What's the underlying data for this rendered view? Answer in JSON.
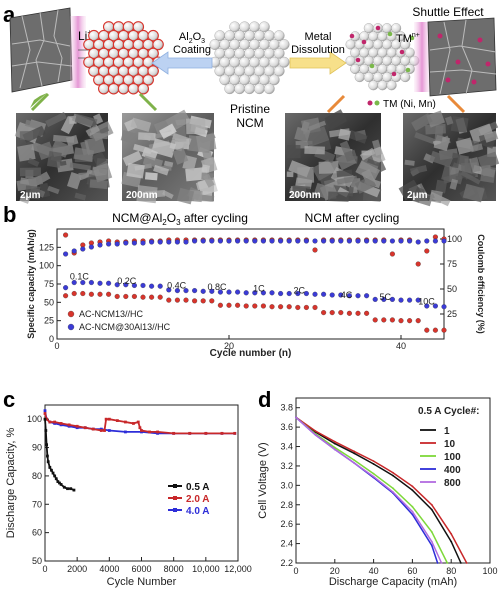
{
  "panels": {
    "a": {
      "letter": "a",
      "li_label": "Li",
      "li_sup": "+",
      "coating_label_1": "Al",
      "coating_label_sub": "2",
      "coating_label_2": "O",
      "coating_label_sub2": "3",
      "coating_label_3": "Coating",
      "dissolution_label_1": "Metal",
      "dissolution_label_2": "Dissolution",
      "shuttle_label": "Shuttle Effect",
      "tm_label": "TM",
      "tm_sup": "n+",
      "tm_legend": "TM (Ni, Mn)",
      "pristine_label_1": "Pristine",
      "pristine_label_2": "NCM",
      "sem_scales": [
        "2μm",
        "200nm",
        "200nm",
        "2μm"
      ]
    },
    "b": {
      "letter": "b",
      "title_left_1": "NCM@Al",
      "title_left_sub": "2",
      "title_left_2": "O",
      "title_left_sub2": "3",
      "title_left_3": " after cycling",
      "title_right": "NCM after cycling"
    },
    "c": {
      "letter": "c"
    },
    "d": {
      "letter": "d"
    }
  },
  "chart_data": [
    {
      "id": "b",
      "type": "scatter",
      "xlabel": "Cycle number (n)",
      "ylabel": "Specific capacity (mAh/g)",
      "y2label": "Coulomb efficiency (%)",
      "xlim": [
        0,
        45
      ],
      "ylim": [
        0,
        150
      ],
      "y2lim": [
        0,
        110
      ],
      "xticks": [
        0,
        20,
        40
      ],
      "yticks": [
        0,
        25,
        50,
        75,
        100,
        125
      ],
      "y2ticks": [
        25,
        50,
        75,
        100
      ],
      "rate_labels": [
        {
          "text": "0.1C",
          "x": 1.5,
          "y": 81
        },
        {
          "text": "0.2C",
          "x": 7,
          "y": 75
        },
        {
          "text": "0.4C",
          "x": 12.8,
          "y": 69
        },
        {
          "text": "0.8C",
          "x": 17.5,
          "y": 67
        },
        {
          "text": "1C",
          "x": 22.8,
          "y": 65
        },
        {
          "text": "2C",
          "x": 27.5,
          "y": 62
        },
        {
          "text": "4C",
          "x": 33,
          "y": 56
        },
        {
          "text": "5C",
          "x": 37.5,
          "y": 53
        },
        {
          "text": "10C",
          "x": 42,
          "y": 47
        }
      ],
      "legend": [
        "AC-NCM13//HC",
        "AC-NCM@30Al13//HC"
      ],
      "legend_position": "bottom-left",
      "series": [
        {
          "name": "AC-NCM13//HC",
          "axis": "left",
          "color": "#d8342c",
          "x": [
            1,
            2,
            3,
            4,
            5,
            6,
            7,
            8,
            9,
            10,
            11,
            12,
            13,
            14,
            15,
            16,
            17,
            18,
            19,
            20,
            21,
            22,
            23,
            24,
            25,
            26,
            27,
            28,
            29,
            30,
            31,
            32,
            33,
            34,
            35,
            36,
            37,
            38,
            39,
            40,
            41,
            42,
            43,
            44,
            45
          ],
          "y": [
            59,
            62,
            62,
            61,
            61,
            61,
            58,
            58,
            58,
            57,
            57,
            57,
            53,
            53,
            53,
            52,
            52,
            52,
            46,
            46,
            46,
            45,
            45,
            45,
            44,
            44,
            44,
            43,
            43,
            43,
            36,
            36,
            36,
            35,
            35,
            35,
            26,
            26,
            26,
            25,
            25,
            25,
            12,
            12,
            12
          ]
        },
        {
          "name": "AC-NCM@30Al13//HC",
          "axis": "left",
          "color": "#3b3bd6",
          "x": [
            1,
            2,
            3,
            4,
            5,
            6,
            7,
            8,
            9,
            10,
            11,
            12,
            13,
            14,
            15,
            16,
            17,
            18,
            19,
            20,
            21,
            22,
            23,
            24,
            25,
            26,
            27,
            28,
            29,
            30,
            31,
            32,
            33,
            34,
            35,
            36,
            37,
            38,
            39,
            40,
            41,
            42,
            43,
            44,
            45
          ],
          "y": [
            70,
            77,
            77,
            77,
            76,
            76,
            74,
            74,
            73,
            73,
            72,
            72,
            67,
            66,
            66,
            66,
            65,
            65,
            64,
            64,
            64,
            63,
            63,
            63,
            63,
            62,
            62,
            62,
            62,
            61,
            61,
            60,
            60,
            59,
            59,
            59,
            54,
            54,
            54,
            53,
            53,
            53,
            45,
            45,
            44
          ]
        },
        {
          "name": "CE red",
          "axis": "right",
          "color": "#d8342c",
          "x": [
            1,
            2,
            3,
            4,
            5,
            6,
            7,
            8,
            9,
            10,
            11,
            12,
            13,
            14,
            15,
            16,
            17,
            18,
            19,
            20,
            21,
            22,
            23,
            24,
            25,
            26,
            27,
            28,
            29,
            30,
            31,
            32,
            33,
            34,
            35,
            36,
            37,
            38,
            39,
            40,
            41,
            42,
            43,
            44,
            45
          ],
          "y": [
            104,
            86,
            94,
            96,
            97,
            98,
            97,
            97,
            98,
            98,
            98,
            98,
            99,
            99,
            99,
            99,
            99,
            99,
            99,
            99,
            99,
            99,
            99,
            99,
            99,
            99,
            99,
            99,
            99,
            89,
            99,
            99,
            99,
            99,
            99,
            99,
            99,
            99,
            85,
            99,
            99,
            75,
            88,
            102,
            100
          ]
        },
        {
          "name": "CE blue",
          "axis": "right",
          "color": "#3b3bd6",
          "x": [
            1,
            2,
            3,
            4,
            5,
            6,
            7,
            8,
            9,
            10,
            11,
            12,
            13,
            14,
            15,
            16,
            17,
            18,
            19,
            20,
            21,
            22,
            23,
            24,
            25,
            26,
            27,
            28,
            29,
            30,
            31,
            32,
            33,
            34,
            35,
            36,
            37,
            38,
            39,
            40,
            41,
            42,
            43,
            44,
            45
          ],
          "y": [
            85,
            88,
            90,
            92,
            94,
            95,
            95,
            96,
            96,
            96,
            97,
            97,
            97,
            97,
            97,
            98,
            98,
            98,
            98,
            98,
            98,
            98,
            98,
            98,
            98,
            98,
            98,
            98,
            98,
            98,
            98,
            98,
            98,
            98,
            98,
            98,
            98,
            98,
            98,
            98,
            98,
            97,
            98,
            98,
            98
          ]
        }
      ]
    },
    {
      "id": "c",
      "type": "line",
      "xlabel": "Cycle Number",
      "ylabel": "Discharge Capacity, %",
      "xlim": [
        0,
        12000
      ],
      "ylim": [
        50,
        105
      ],
      "xticks": [
        0,
        2000,
        4000,
        6000,
        8000,
        10000,
        12000
      ],
      "xtick_labels": [
        "0",
        "2000",
        "4000",
        "6000",
        "8000",
        "10,000",
        "12,000"
      ],
      "yticks": [
        50,
        60,
        70,
        80,
        90,
        100
      ],
      "legend_position": "center-right",
      "series": [
        {
          "name": "0.5 A",
          "color": "#111111",
          "x": [
            0,
            50,
            100,
            150,
            200,
            300,
            400,
            500,
            600,
            700,
            800,
            900,
            1000,
            1200,
            1400,
            1600,
            1800
          ],
          "y": [
            100,
            96,
            91,
            87,
            85,
            83,
            82,
            81,
            80,
            79,
            78,
            77.5,
            77,
            76,
            75.5,
            75.5,
            75
          ]
        },
        {
          "name": "2.0 A",
          "color": "#c8282a",
          "x": [
            0,
            100,
            300,
            600,
            1000,
            1500,
            2000,
            2500,
            3000,
            3500,
            3700,
            3800,
            4000,
            4500,
            5000,
            5500,
            5800,
            5900,
            6000,
            6500,
            7000,
            8000,
            9000,
            10000,
            11000,
            11800
          ],
          "y": [
            102,
            100,
            99,
            99,
            98.5,
            98,
            97.5,
            97,
            96.5,
            96,
            96,
            100,
            100,
            99.5,
            99,
            98.5,
            99,
            97,
            96,
            95.5,
            95.5,
            95,
            95,
            95,
            95,
            95
          ]
        },
        {
          "name": "4.0 A",
          "color": "#2d2dd8",
          "x": [
            0,
            100,
            300,
            600,
            1000,
            1500,
            2000,
            2500,
            3000,
            3500,
            4000,
            5000,
            6000,
            7000,
            8000,
            9000,
            10000,
            11000,
            11800
          ],
          "y": [
            103,
            100,
            99,
            98.5,
            98,
            97.5,
            97,
            97,
            96.5,
            96.5,
            96,
            95.5,
            95.5,
            95,
            95,
            95,
            95,
            95,
            95
          ]
        }
      ]
    },
    {
      "id": "d",
      "type": "line",
      "xlabel": "Discharge Capacity (mAh)",
      "ylabel": "Cell Voltage (V)",
      "xlim": [
        0,
        100
      ],
      "ylim": [
        2.2,
        3.9
      ],
      "xticks": [
        0,
        20,
        40,
        60,
        80,
        100
      ],
      "yticks": [
        2.2,
        2.4,
        2.6,
        2.8,
        3.0,
        3.2,
        3.4,
        3.6,
        3.8
      ],
      "legend_title": "0.5 A Cycle#:",
      "legend_position": "top-right",
      "series": [
        {
          "name": "1",
          "color": "#111111",
          "x": [
            0,
            10,
            20,
            30,
            40,
            50,
            60,
            70,
            80,
            85
          ],
          "y": [
            3.7,
            3.55,
            3.43,
            3.33,
            3.22,
            3.1,
            2.95,
            2.75,
            2.42,
            2.2
          ]
        },
        {
          "name": "10",
          "color": "#c8282a",
          "x": [
            0,
            10,
            20,
            30,
            40,
            50,
            60,
            70,
            80,
            88
          ],
          "y": [
            3.7,
            3.56,
            3.45,
            3.35,
            3.25,
            3.13,
            2.99,
            2.8,
            2.5,
            2.2
          ]
        },
        {
          "name": "100",
          "color": "#7ed83a",
          "x": [
            0,
            10,
            20,
            30,
            40,
            50,
            60,
            70,
            78
          ],
          "y": [
            3.7,
            3.53,
            3.39,
            3.26,
            3.12,
            2.97,
            2.78,
            2.52,
            2.2
          ]
        },
        {
          "name": "400",
          "color": "#2d2dd8",
          "x": [
            0,
            10,
            20,
            30,
            40,
            50,
            60,
            70,
            73
          ],
          "y": [
            3.7,
            3.52,
            3.37,
            3.23,
            3.08,
            2.92,
            2.7,
            2.38,
            2.2
          ]
        },
        {
          "name": "800",
          "color": "#b26be0",
          "x": [
            0,
            10,
            20,
            30,
            40,
            50,
            60,
            70,
            75
          ],
          "y": [
            3.7,
            3.52,
            3.37,
            3.23,
            3.09,
            2.93,
            2.73,
            2.42,
            2.2
          ]
        }
      ]
    }
  ]
}
